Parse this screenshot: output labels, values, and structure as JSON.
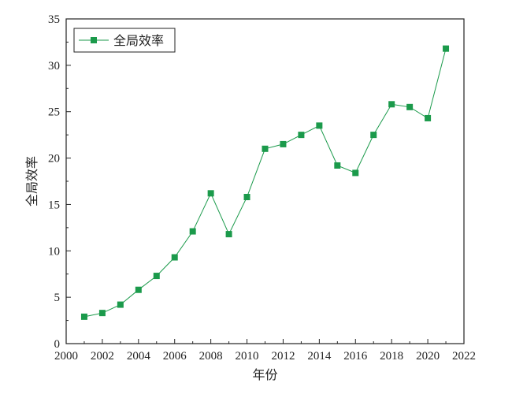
{
  "chart_data": {
    "type": "line",
    "title": "",
    "xlabel": "年份",
    "ylabel": "全局效率",
    "xlim": [
      2000,
      2022
    ],
    "ylim": [
      0,
      35
    ],
    "xticks": [
      2000,
      2002,
      2004,
      2006,
      2008,
      2010,
      2012,
      2014,
      2016,
      2018,
      2020,
      2022
    ],
    "yticks": [
      0,
      5,
      10,
      15,
      20,
      25,
      30,
      35
    ],
    "grid": false,
    "legend": "top-left",
    "series": [
      {
        "name": "全局效率",
        "color": "#1b9a4b",
        "marker": "square",
        "x": [
          2001,
          2002,
          2003,
          2004,
          2005,
          2006,
          2007,
          2008,
          2009,
          2010,
          2011,
          2012,
          2013,
          2014,
          2015,
          2016,
          2017,
          2018,
          2019,
          2020,
          2021
        ],
        "values": [
          2.9,
          3.3,
          4.2,
          5.8,
          7.3,
          9.3,
          12.1,
          16.2,
          11.8,
          15.8,
          21.0,
          21.5,
          22.5,
          23.5,
          19.2,
          18.4,
          22.5,
          25.8,
          25.5,
          24.3,
          31.8
        ]
      }
    ]
  }
}
